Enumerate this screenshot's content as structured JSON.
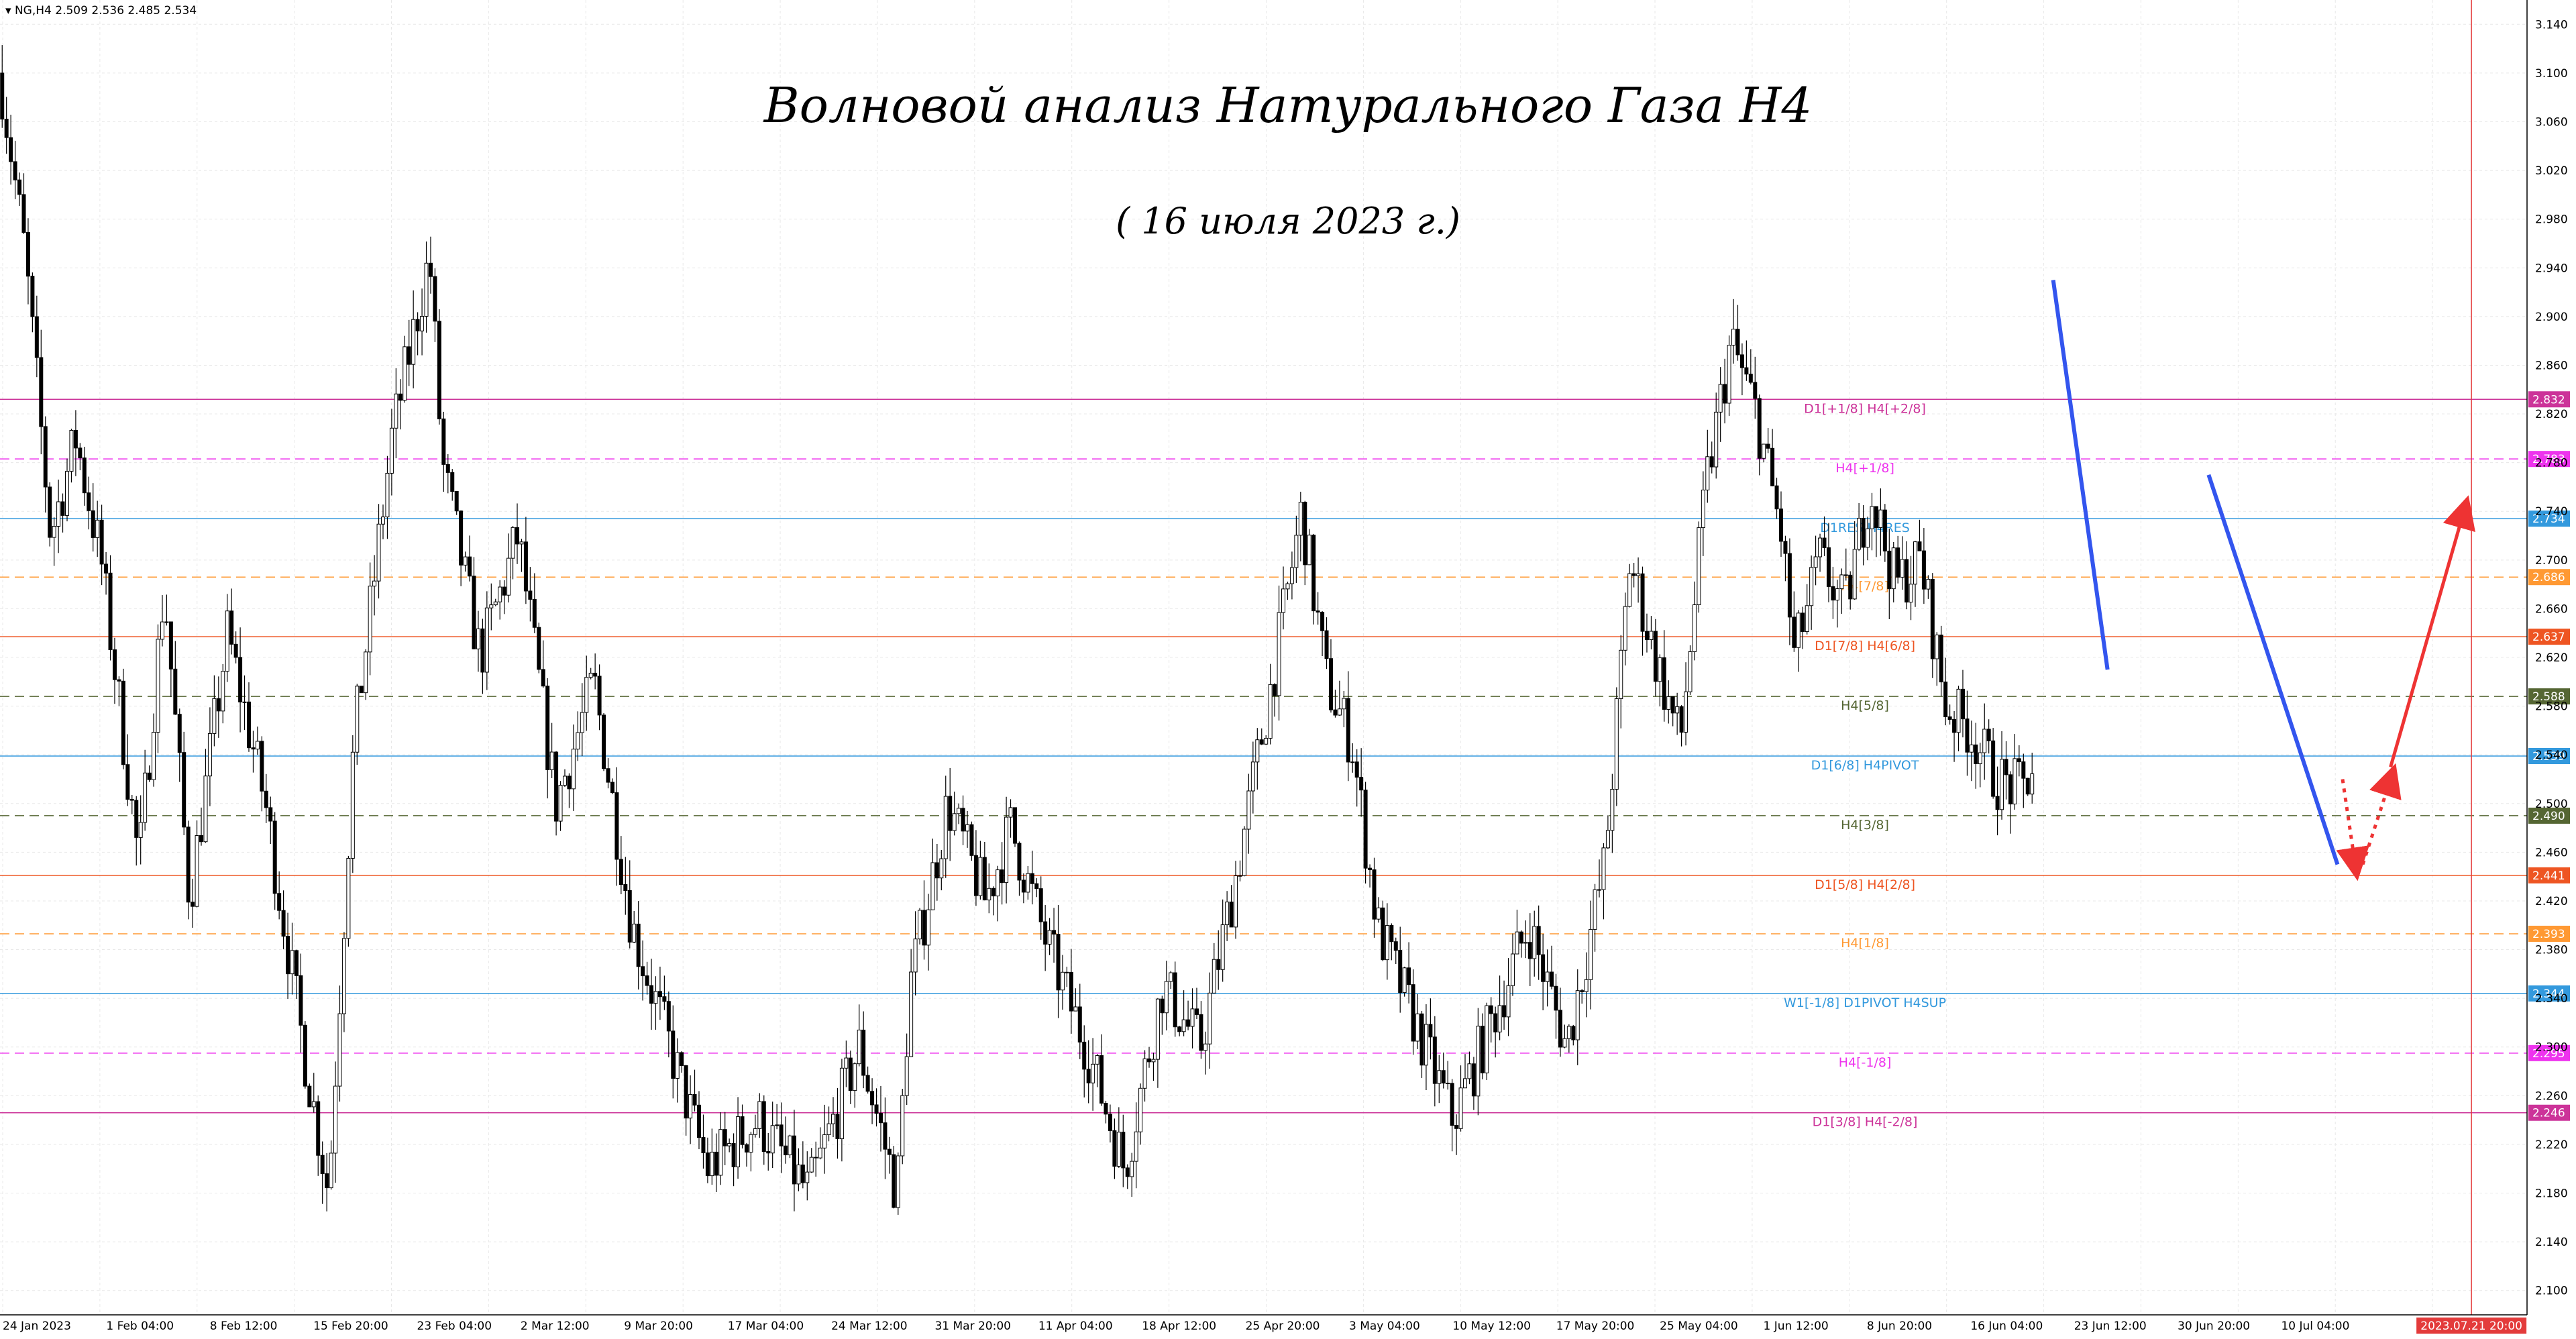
{
  "header": {
    "symbol": "NG,H4",
    "ohlc": "2.509 2.536 2.485 2.534"
  },
  "titles": {
    "main": "Волновой анализ Натурального Газа H4",
    "sub": "( 16 июля 2023 г.)"
  },
  "colors": {
    "background": "#ffffff",
    "grid": "#e8e8e8",
    "candle": "#000000",
    "blue_wave": "#3355ee",
    "red_arrow": "#ee3333",
    "vline": "#e33b3b"
  },
  "chart_data": {
    "type": "candlestick",
    "symbol": "NG",
    "timeframe": "H4",
    "ylim": [
      2.08,
      3.16
    ],
    "y_ticks": [
      2.1,
      2.14,
      2.18,
      2.22,
      2.26,
      2.3,
      2.34,
      2.38,
      2.42,
      2.46,
      2.5,
      2.54,
      2.58,
      2.62,
      2.66,
      2.7,
      2.74,
      2.78,
      2.82,
      2.86,
      2.9,
      2.94,
      2.98,
      3.02,
      3.06,
      3.1,
      3.14
    ],
    "y_tick_labels": [
      "2.100",
      "2.140",
      "2.180",
      "2.220",
      "2.260",
      "2.300",
      "2.340",
      "2.380",
      "2.420",
      "2.460",
      "2.500",
      "2.540",
      "2.580",
      "2.620",
      "2.660",
      "2.700",
      "2.740",
      "2.780",
      "2.820",
      "2.860",
      "2.900",
      "2.940",
      "2.980",
      "3.020",
      "3.060",
      "3.100",
      "3.140"
    ],
    "x_tick_labels": [
      "24 Jan 2023",
      "1 Feb 04:00",
      "8 Feb 12:00",
      "15 Feb 20:00",
      "23 Feb 04:00",
      "2 Mar 12:00",
      "9 Mar 20:00",
      "17 Mar 04:00",
      "24 Mar 12:00",
      "31 Mar 20:00",
      "11 Apr 04:00",
      "18 Apr 12:00",
      "25 Apr 20:00",
      "3 May 04:00",
      "10 May 12:00",
      "17 May 20:00",
      "25 May 04:00",
      "1 Jun 12:00",
      "8 Jun 20:00",
      "16 Jun 04:00",
      "23 Jun 12:00",
      "30 Jun 20:00",
      "10 Jul 04:00"
    ],
    "current_time_label": "2023.07.21 20:00",
    "price_path": [
      [
        0,
        3.1
      ],
      [
        0.01,
        2.95
      ],
      [
        0.02,
        2.72
      ],
      [
        0.03,
        2.8
      ],
      [
        0.04,
        2.7
      ],
      [
        0.055,
        2.45
      ],
      [
        0.065,
        2.68
      ],
      [
        0.075,
        2.42
      ],
      [
        0.09,
        2.64
      ],
      [
        0.105,
        2.5
      ],
      [
        0.12,
        2.3
      ],
      [
        0.13,
        2.18
      ],
      [
        0.14,
        2.55
      ],
      [
        0.155,
        2.8
      ],
      [
        0.17,
        2.95
      ],
      [
        0.175,
        2.78
      ],
      [
        0.19,
        2.62
      ],
      [
        0.205,
        2.72
      ],
      [
        0.22,
        2.5
      ],
      [
        0.235,
        2.6
      ],
      [
        0.25,
        2.4
      ],
      [
        0.265,
        2.3
      ],
      [
        0.28,
        2.2
      ],
      [
        0.3,
        2.24
      ],
      [
        0.32,
        2.18
      ],
      [
        0.34,
        2.3
      ],
      [
        0.355,
        2.18
      ],
      [
        0.36,
        2.35
      ],
      [
        0.375,
        2.5
      ],
      [
        0.39,
        2.42
      ],
      [
        0.4,
        2.48
      ],
      [
        0.415,
        2.38
      ],
      [
        0.43,
        2.3
      ],
      [
        0.445,
        2.2
      ],
      [
        0.46,
        2.35
      ],
      [
        0.475,
        2.3
      ],
      [
        0.49,
        2.45
      ],
      [
        0.505,
        2.62
      ],
      [
        0.515,
        2.74
      ],
      [
        0.525,
        2.6
      ],
      [
        0.535,
        2.55
      ],
      [
        0.545,
        2.4
      ],
      [
        0.56,
        2.32
      ],
      [
        0.575,
        2.24
      ],
      [
        0.59,
        2.32
      ],
      [
        0.605,
        2.4
      ],
      [
        0.62,
        2.3
      ],
      [
        0.635,
        2.45
      ],
      [
        0.645,
        2.7
      ],
      [
        0.655,
        2.62
      ],
      [
        0.665,
        2.55
      ],
      [
        0.675,
        2.76
      ],
      [
        0.685,
        2.88
      ],
      [
        0.695,
        2.82
      ],
      [
        0.705,
        2.72
      ],
      [
        0.71,
        2.62
      ],
      [
        0.72,
        2.7
      ],
      [
        0.73,
        2.66
      ],
      [
        0.74,
        2.76
      ],
      [
        0.75,
        2.68
      ],
      [
        0.76,
        2.7
      ],
      [
        0.77,
        2.58
      ],
      [
        0.78,
        2.56
      ],
      [
        0.79,
        2.52
      ],
      [
        0.8,
        2.51
      ],
      [
        0.805,
        2.534
      ]
    ],
    "levels": [
      {
        "value": 2.832,
        "price_label": "2.832",
        "text": "D1[+1/8] H4[+2/8]",
        "color": "#cc3399",
        "dash": false
      },
      {
        "value": 2.783,
        "price_label": "2.783",
        "text": "H4[+1/8]",
        "color": "#ee33ee",
        "dash": true
      },
      {
        "value": 2.734,
        "price_label": "2.734",
        "text": "D1RES H4RES",
        "color": "#3399dd",
        "dash": false
      },
      {
        "value": 2.686,
        "price_label": "2.686",
        "text": "H4[7/8]",
        "color": "#ff9933",
        "dash": true
      },
      {
        "value": 2.637,
        "price_label": "2.637",
        "text": "D1[7/8] H4[6/8]",
        "color": "#ee5522",
        "dash": false
      },
      {
        "value": 2.588,
        "price_label": "2.588",
        "text": "H4[5/8]",
        "color": "#556633",
        "dash": true
      },
      {
        "value": 2.539,
        "price_label": "2.539",
        "text": "D1[6/8] H4PIVOT",
        "color": "#3399dd",
        "dash": false
      },
      {
        "value": 2.49,
        "price_label": "2.490",
        "text": "H4[3/8]",
        "color": "#556633",
        "dash": true
      },
      {
        "value": 2.441,
        "price_label": "2.441",
        "text": "D1[5/8] H4[2/8]",
        "color": "#ee5522",
        "dash": false
      },
      {
        "value": 2.393,
        "price_label": "2.393",
        "text": "H4[1/8]",
        "color": "#ff9933",
        "dash": true
      },
      {
        "value": 2.344,
        "price_label": "2.344",
        "text": "W1[-1/8] D1PIVOT H4SUP",
        "color": "#3399dd",
        "dash": false
      },
      {
        "value": 2.295,
        "price_label": "2.295",
        "text": "H4[-1/8]",
        "color": "#ee33ee",
        "dash": true
      },
      {
        "value": 2.246,
        "price_label": "2.246",
        "text": "D1[3/8] H4[-2/8]",
        "color": "#cc3399",
        "dash": false
      }
    ],
    "wave_lines": [
      {
        "from": [
          0.8125,
          2.93
        ],
        "to": [
          0.834,
          2.61
        ]
      },
      {
        "from": [
          0.874,
          2.77
        ],
        "to": [
          0.925,
          2.45
        ]
      }
    ],
    "dotted_arrows": [
      {
        "from": [
          0.927,
          2.52
        ],
        "to": [
          0.932,
          2.45
        ]
      },
      {
        "from": [
          0.935,
          2.45
        ],
        "to": [
          0.946,
          2.52
        ]
      }
    ],
    "solid_arrow": {
      "from": [
        0.946,
        2.53
      ],
      "to": [
        0.975,
        2.74
      ]
    },
    "current_time_x": 0.978
  }
}
